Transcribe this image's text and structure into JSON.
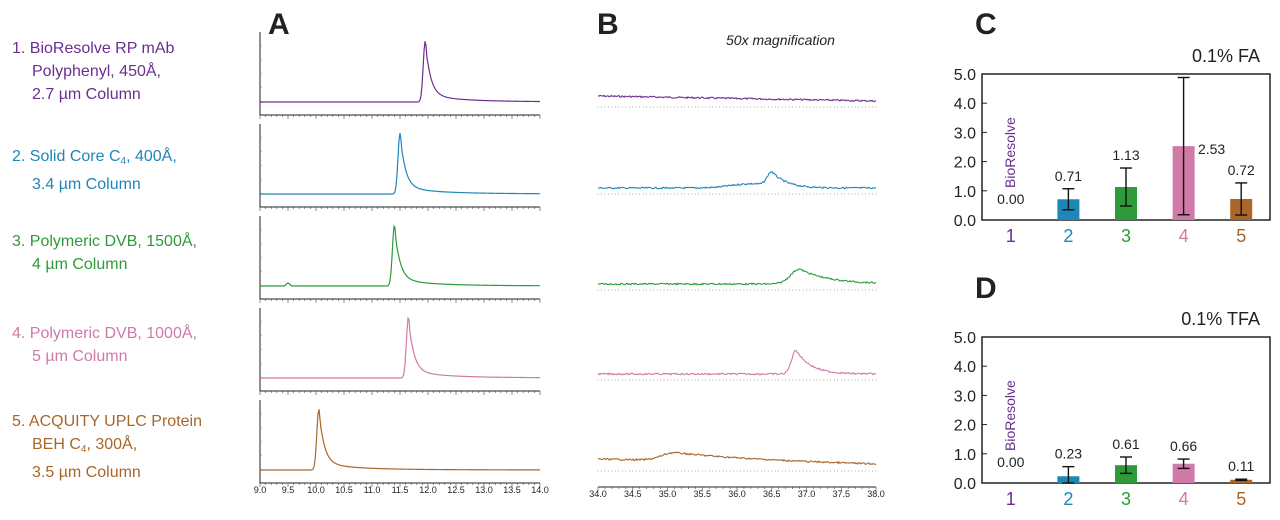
{
  "legend": [
    {
      "lines": [
        "1. BioResolve RP mAb",
        "Polyphenyl, 450Å,",
        "2.7 µm Column"
      ],
      "color": "#6a2f8f"
    },
    {
      "lines": [
        "2. Solid Core C",
        "3.4 µm Column"
      ],
      "sub": "4",
      "after": ", 400Å,",
      "color": "#1f86b8"
    },
    {
      "lines": [
        "3. Polymeric DVB, 1500Å,",
        "4 µm Column"
      ],
      "color": "#2e9a3a"
    },
    {
      "lines": [
        "4. Polymeric DVB, 1000Å,",
        "5 µm Column"
      ],
      "color": "#d07aa8"
    },
    {
      "lines": [
        "5. ACQUITY UPLC Protein",
        "BEH C",
        "3.5 µm Column"
      ],
      "sub": "4",
      "after": ", 300Å,",
      "color": "#a9662a"
    }
  ],
  "panel_labels": {
    "a": "A",
    "b": "B",
    "c": "C",
    "d": "D"
  },
  "magnification_note": "50x magnification",
  "chart_data": [
    {
      "type": "line",
      "panel": "A",
      "x_ticks": [
        "9.0",
        "9.5",
        "10.0",
        "10.5",
        "11.0",
        "11.5",
        "12.0",
        "12.5",
        "13.0",
        "13.5",
        "14.0"
      ],
      "xlim": [
        9.0,
        14.0
      ],
      "series": [
        {
          "color": "#6a2f8f",
          "peak": 11.95,
          "baseline": 0.0
        },
        {
          "color": "#1f86b8",
          "peak": 11.5,
          "baseline": 0.0
        },
        {
          "color": "#2e9a3a",
          "peak": 11.4,
          "baseline": 0.0,
          "minor_peak": 9.5
        },
        {
          "color": "#d07aa8",
          "peak": 11.65,
          "baseline": 0.0
        },
        {
          "color": "#a9662a",
          "peak": 10.05,
          "baseline": 0.0
        }
      ]
    },
    {
      "type": "line",
      "panel": "B",
      "x_ticks": [
        "34.0",
        "34.5",
        "35.0",
        "35.5",
        "36.0",
        "36.5",
        "37.0",
        "37.5",
        "38.0"
      ],
      "xlim": [
        34.0,
        38.0
      ],
      "series": [
        {
          "color": "#6a2f8f"
        },
        {
          "color": "#1f86b8",
          "peak": 36.5
        },
        {
          "color": "#2e9a3a",
          "peak": 36.9
        },
        {
          "color": "#d07aa8",
          "peak": 36.85
        },
        {
          "color": "#a9662a",
          "peak": 35.1
        }
      ]
    },
    {
      "type": "bar",
      "panel": "C",
      "title": "0.1% FA",
      "categories": [
        "1",
        "2",
        "3",
        "4",
        "5"
      ],
      "values": [
        0.0,
        0.71,
        1.13,
        2.53,
        0.72
      ],
      "value_labels": [
        "0.00",
        "0.71",
        "1.13",
        "2.53",
        "0.72"
      ],
      "error": [
        0,
        0.36,
        0.65,
        2.35,
        0.55
      ],
      "colors": [
        "#6a2f8f",
        "#1f86b8",
        "#2e9a3a",
        "#d07aa8",
        "#a9662a"
      ],
      "ylim": [
        0,
        5.0
      ],
      "y_ticks": [
        "0.0",
        "1.0",
        "2.0",
        "3.0",
        "4.0",
        "5.0"
      ],
      "annotation": "BioResolve"
    },
    {
      "type": "bar",
      "panel": "D",
      "title": "0.1% TFA",
      "categories": [
        "1",
        "2",
        "3",
        "4",
        "5"
      ],
      "values": [
        0.0,
        0.23,
        0.61,
        0.66,
        0.11
      ],
      "value_labels": [
        "0.00",
        "0.23",
        "0.61",
        "0.66",
        "0.11"
      ],
      "error": [
        0,
        0.33,
        0.28,
        0.16,
        0.02
      ],
      "colors": [
        "#6a2f8f",
        "#1f86b8",
        "#2e9a3a",
        "#d07aa8",
        "#a9662a"
      ],
      "ylim": [
        0,
        5.0
      ],
      "y_ticks": [
        "0.0",
        "1.0",
        "2.0",
        "3.0",
        "4.0",
        "5.0"
      ],
      "annotation": "BioResolve"
    }
  ]
}
